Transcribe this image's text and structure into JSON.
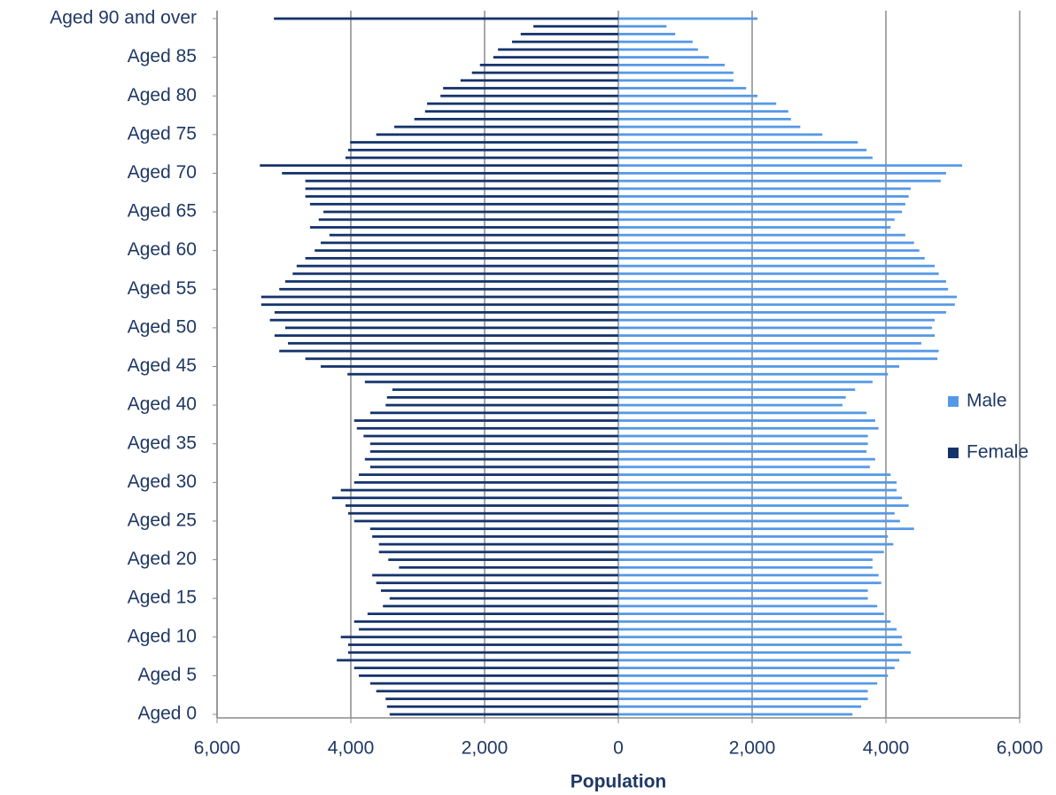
{
  "chart_data": {
    "type": "pyramid",
    "x_label": "Population",
    "categories": [
      "Aged 0",
      null,
      null,
      null,
      null,
      "Aged 5",
      null,
      null,
      null,
      null,
      "Aged 10",
      null,
      null,
      null,
      null,
      "Aged 15",
      null,
      null,
      null,
      null,
      "Aged 20",
      null,
      null,
      null,
      null,
      "Aged 25",
      null,
      null,
      null,
      null,
      "Aged 30",
      null,
      null,
      null,
      null,
      "Aged 35",
      null,
      null,
      null,
      null,
      "Aged 40",
      null,
      null,
      null,
      null,
      "Aged 45",
      null,
      null,
      null,
      null,
      "Aged 50",
      null,
      null,
      null,
      null,
      "Aged 55",
      null,
      null,
      null,
      null,
      "Aged 60",
      null,
      null,
      null,
      null,
      "Aged 65",
      null,
      null,
      null,
      null,
      "Aged 70",
      null,
      null,
      null,
      null,
      "Aged 75",
      null,
      null,
      null,
      null,
      "Aged 80",
      null,
      null,
      null,
      null,
      "Aged 85",
      null,
      null,
      null,
      null,
      "Aged 90 and over"
    ],
    "series": [
      {
        "name": "Male",
        "color": "#5599e6",
        "values": [
          3500,
          3630,
          3730,
          3730,
          3870,
          4030,
          4130,
          4200,
          4370,
          4240,
          4240,
          4160,
          4070,
          3970,
          3870,
          3730,
          3730,
          3930,
          3890,
          3800,
          3800,
          3970,
          4110,
          4030,
          4420,
          4210,
          4130,
          4340,
          4240,
          4160,
          4160,
          4070,
          3760,
          3840,
          3710,
          3730,
          3730,
          3890,
          3840,
          3710,
          3350,
          3400,
          3540,
          3800,
          4030,
          4200,
          4770,
          4790,
          4530,
          4730,
          4690,
          4730,
          4900,
          5030,
          5060,
          4930,
          4900,
          4790,
          4730,
          4580,
          4500,
          4420,
          4290,
          4070,
          4130,
          4240,
          4290,
          4340,
          4370,
          4820,
          4900,
          5140,
          3800,
          3710,
          3580,
          3050,
          2720,
          2580,
          2540,
          2360,
          2080,
          1910,
          1720,
          1720,
          1590,
          1350,
          1190,
          1110,
          850,
          720,
          2080
        ]
      },
      {
        "name": "Female",
        "color": "#14336b",
        "values": [
          -3420,
          -3460,
          -3480,
          -3620,
          -3710,
          -3880,
          -3950,
          -4210,
          -4040,
          -4040,
          -4150,
          -3880,
          -3950,
          -3750,
          -3520,
          -3420,
          -3550,
          -3620,
          -3680,
          -3280,
          -3440,
          -3580,
          -3580,
          -3680,
          -3710,
          -3950,
          -4040,
          -4080,
          -4280,
          -4150,
          -3950,
          -3880,
          -3710,
          -3790,
          -3710,
          -3710,
          -3810,
          -3910,
          -3950,
          -3710,
          -3480,
          -3460,
          -3380,
          -3790,
          -4050,
          -4450,
          -4680,
          -5070,
          -4940,
          -5140,
          -4980,
          -5210,
          -5140,
          -5340,
          -5340,
          -5070,
          -4980,
          -4870,
          -4810,
          -4680,
          -4540,
          -4450,
          -4320,
          -4610,
          -4480,
          -4410,
          -4610,
          -4680,
          -4680,
          -4680,
          -5030,
          -5360,
          -4080,
          -4040,
          -4010,
          -3620,
          -3350,
          -3050,
          -2890,
          -2860,
          -2660,
          -2620,
          -2360,
          -2190,
          -2070,
          -1870,
          -1800,
          -1590,
          -1460,
          -1270,
          -5150
        ]
      }
    ],
    "xlim": [
      -6000,
      6000
    ],
    "xticks": [
      {
        "value": -6000,
        "label": "6,000"
      },
      {
        "value": -4000,
        "label": "4,000"
      },
      {
        "value": -2000,
        "label": "2,000"
      },
      0,
      {
        "value": 2000,
        "label": "2,000"
      },
      {
        "value": 4000,
        "label": "4,000"
      },
      {
        "value": 6000,
        "label": "6,000"
      }
    ],
    "grid": true,
    "legend": "right"
  }
}
